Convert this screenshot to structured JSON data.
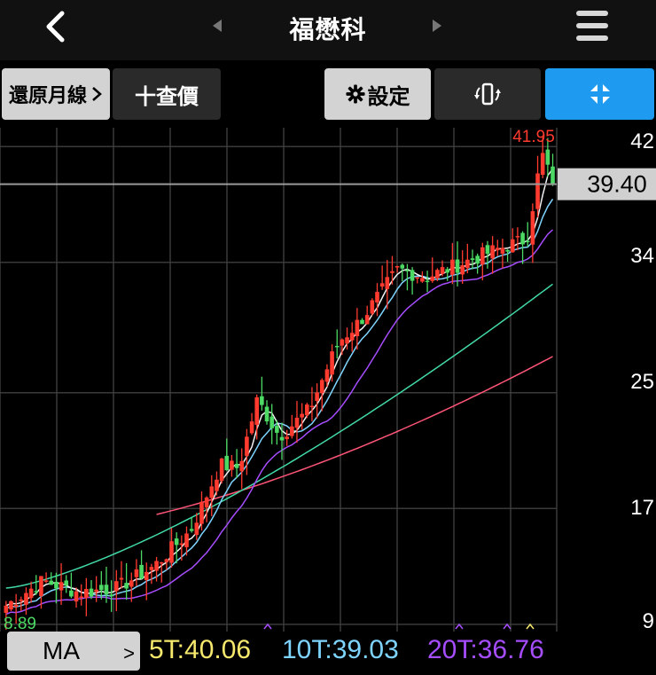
{
  "header": {
    "title": "福懋科"
  },
  "toolbar": {
    "restore_label": "還原月線",
    "query_label": "十查價",
    "settings_label": "設定"
  },
  "ma_bar": {
    "button_label": "MA",
    "ma5": "5T:40.06",
    "ma10": "10T:39.03",
    "ma20": "20T:36.76"
  },
  "colors": {
    "up": "#ff3b30",
    "down": "#4cd964",
    "ma5": "#f5e86c",
    "ma10": "#7fd4ff",
    "ma20": "#a64dff",
    "ma60": "#42d9a8",
    "ma120": "#ff5577",
    "accent": "#1e9bf0"
  },
  "chart_data": {
    "type": "candlestick",
    "y_ticks": [
      "42",
      "34",
      "25",
      "17",
      "9"
    ],
    "ylim": [
      8.5,
      43.3
    ],
    "current_price": "39.40",
    "high_label": "41.95",
    "low_label": "8.89",
    "grid": true
  }
}
